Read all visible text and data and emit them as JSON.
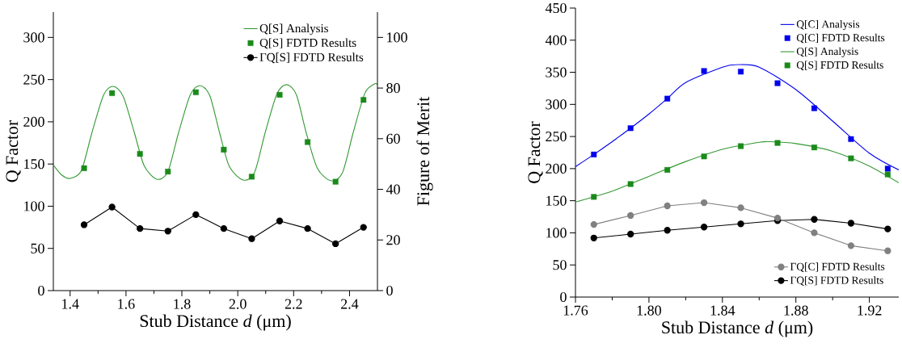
{
  "chart_data": [
    {
      "type": "line",
      "xlabel": "Stub Distance *d* (μm)",
      "ylabel": "Q Factor",
      "y2label": "Figure of Merit",
      "legend": "top right",
      "x": [
        1.45,
        1.55,
        1.65,
        1.75,
        1.85,
        1.95,
        2.05,
        2.15,
        2.25,
        2.35,
        2.45
      ],
      "xlim": [
        1.34,
        2.5
      ],
      "xticks": [
        1.4,
        1.6,
        1.8,
        {
          "value": 2,
          "label": "2.0"
        },
        2.2,
        2.4
      ],
      "ylim": [
        0,
        330
      ],
      "yticks": [
        0,
        50,
        100,
        150,
        200,
        250,
        300
      ],
      "y2lim": [
        0,
        110
      ],
      "y2ticks": [
        0,
        20,
        40,
        60,
        80,
        100
      ],
      "series": [
        {
          "name": "Q[S]  Analysis",
          "marker": "none",
          "color": "#339933",
          "x": [
            1.34,
            1.37,
            1.4,
            1.44,
            1.478,
            1.52,
            1.555,
            1.59,
            1.63,
            1.665,
            1.71,
            1.75,
            1.788,
            1.83,
            1.865,
            1.9,
            1.935,
            1.97,
            2.02,
            2.06,
            2.098,
            2.14,
            2.175,
            2.21,
            2.245,
            2.285,
            2.335,
            2.375,
            2.413,
            2.455,
            2.49,
            2.5
          ],
          "values": [
            149,
            137,
            133,
            142,
            187,
            232,
            242,
            230,
            187,
            148,
            132,
            141,
            187,
            232,
            243,
            231,
            187,
            147,
            131,
            140,
            187,
            233,
            244,
            232,
            187,
            145,
            130,
            140,
            187,
            234,
            245,
            244
          ]
        },
        {
          "name": "Q[S]  FDTD Results",
          "type": "scatter",
          "marker": "square",
          "color": "#1a8a1a",
          "values": [
            145,
            234,
            162,
            141,
            235,
            167,
            135,
            232,
            176,
            129,
            226
          ]
        },
        {
          "name": "ΓQ[S] FDTD Results",
          "marker": "circle",
          "color": "#000000",
          "axis": "y2",
          "values": [
            26,
            33,
            24.5,
            23.5,
            30,
            24.5,
            20.5,
            27.5,
            24.5,
            18.5,
            25
          ]
        }
      ]
    },
    {
      "type": "line",
      "xlabel": "Stub Distance *d* (μm)",
      "ylabel": "Q Factor",
      "legend": "right",
      "x": [
        1.77,
        1.79,
        1.81,
        1.83,
        1.85,
        1.87,
        1.89,
        1.91,
        1.93
      ],
      "xlim": [
        1.76,
        1.936
      ],
      "xticks": [
        1.76,
        {
          "value": 1.8,
          "label": "1.80"
        },
        1.84,
        1.88,
        1.92
      ],
      "ylim": [
        0,
        450
      ],
      "yticks": [
        0,
        50,
        100,
        150,
        200,
        250,
        300,
        350,
        400,
        450
      ],
      "series": [
        {
          "name": "Q[C] Analysis",
          "marker": "none",
          "color": "#0000ee",
          "x": [
            1.76,
            1.77,
            1.78,
            1.79,
            1.8,
            1.81,
            1.82,
            1.84,
            1.848,
            1.86,
            1.88,
            1.9,
            1.92,
            1.936
          ],
          "values": [
            203,
            222,
            242,
            263,
            285,
            309,
            334,
            358,
            362,
            358,
            323,
            274,
            224,
            198
          ]
        },
        {
          "name": "Q[C] FDTD Results",
          "type": "scatter",
          "marker": "square",
          "color": "#0000ee",
          "values": [
            222,
            263,
            309,
            352,
            351,
            333,
            294,
            246,
            200
          ]
        },
        {
          "name": "Q[S] Analysis",
          "marker": "none",
          "color": "#339933",
          "x": [
            1.76,
            1.78,
            1.8,
            1.82,
            1.84,
            1.86,
            1.866,
            1.88,
            1.9,
            1.92,
            1.936
          ],
          "values": [
            148,
            165,
            188,
            211,
            230,
            241,
            242,
            239,
            227,
            204,
            178
          ]
        },
        {
          "name": "Q[S] FDTD Results",
          "type": "scatter",
          "marker": "square",
          "color": "#1a8a1a",
          "values": [
            156,
            176,
            198,
            219,
            235,
            240,
            233,
            216,
            191
          ]
        },
        {
          "name": "ΓQ[C] FDTD Results",
          "marker": "circle",
          "color": "#808080",
          "values": [
            113,
            127,
            142,
            147,
            139,
            123,
            100,
            80,
            72
          ]
        },
        {
          "name": "ΓQ[S] FDTD Results",
          "marker": "circle",
          "color": "#000000",
          "values": [
            92,
            98,
            104,
            109,
            114,
            119,
            121,
            115,
            106
          ]
        }
      ]
    }
  ]
}
